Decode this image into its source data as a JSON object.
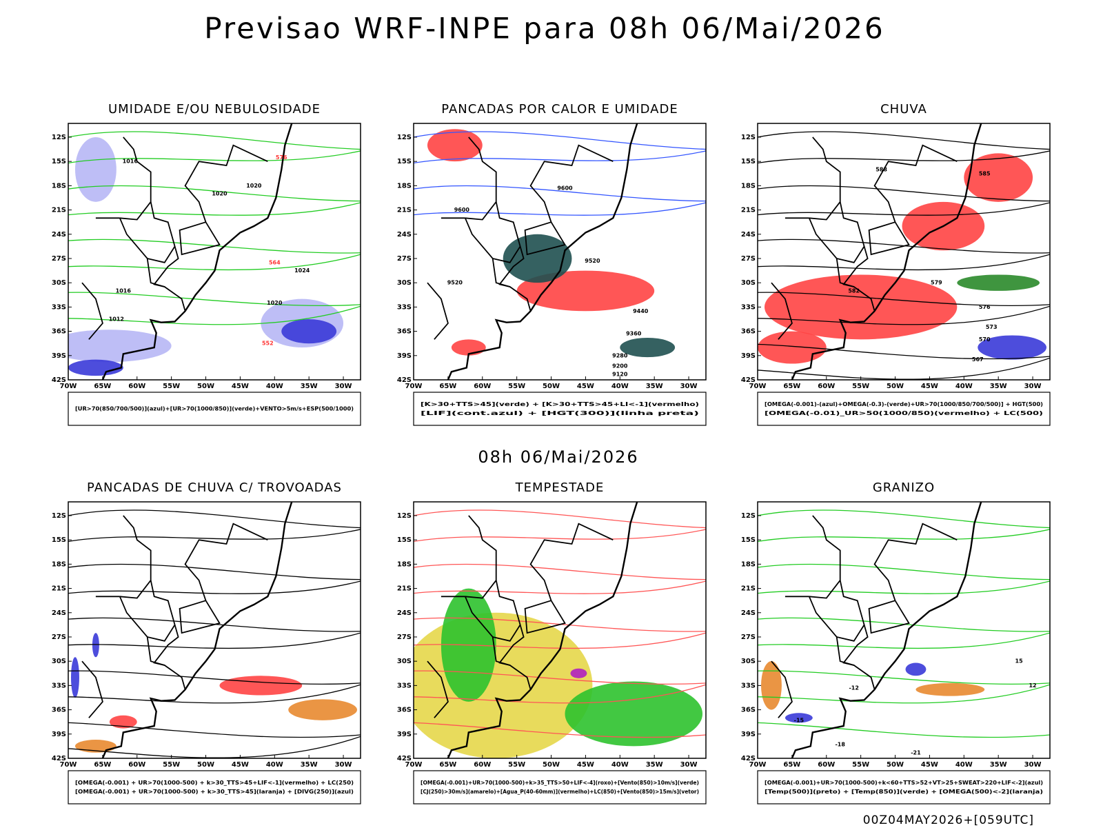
{
  "header": {
    "title": "Previsao WRF-INPE  para 08h 06/Mai/2026"
  },
  "axes": {
    "lat_labels": [
      "12S",
      "15S",
      "18S",
      "21S",
      "24S",
      "27S",
      "30S",
      "33S",
      "36S",
      "39S",
      "42S"
    ],
    "lon_labels": [
      "70W",
      "65W",
      "60W",
      "55W",
      "50W",
      "45W",
      "40W",
      "35W",
      "30W"
    ]
  },
  "panels": [
    {
      "title": "UMIDADE E/OU NEBULOSIDADE",
      "legend": [
        "[UR>70(850/700/500)](azul)+[UR>70(1000/850)](verde)+VENTO>5m/s+ESP(500/1000)"
      ],
      "contour_labels": [
        "1016",
        "1020",
        "1020",
        "1024",
        "1012",
        "1016",
        "1020",
        "576",
        "564",
        "552"
      ]
    },
    {
      "title": "PANCADAS POR CALOR E UMIDADE",
      "legend": [
        "[K>30+TTS>45](verde) + [K>30+TTS>45+LI<-1](vermelho)",
        "[LIF](cont.azul) + [HGT(300)](linha preta)"
      ],
      "contour_labels": [
        "9600",
        "9600",
        "9520",
        "9520",
        "9440",
        "9360",
        "9280",
        "9200",
        "9120"
      ]
    },
    {
      "title": "CHUVA",
      "legend": [
        "[OMEGA(-0.001)-(azul)+OMEGA(-0.3)-(verde)+UR>70(1000/850/700/500)] + HGT(500)",
        "[OMEGA(-0.01)_UR>50(1000/850)(vermelho) + LC(500)"
      ],
      "contour_labels": [
        "588",
        "585",
        "582",
        "579",
        "576",
        "573",
        "570",
        "567"
      ]
    },
    {
      "title": "PANCADAS DE CHUVA C/ TROVOADAS",
      "legend": [
        "[OMEGA(-0.001) + UR>70(1000-500) + k>30_TTS>45+LIF<-1](vermelho) + LC(250)",
        "[OMEGA(-0.001) + UR>70(1000-500) + k>30_TTS>45](laranja) + [DIVG(250)](azul)"
      ],
      "contour_labels": []
    },
    {
      "title": "TEMPESTADE",
      "legend": [
        "[OMEGA(-0.001)+UR>70(1000-500)+k>35_TTS>50+LIF<-4](roxo)+[Vento(850)>10m/s](verde)",
        "[CJ(250)>30m/s](amarelo)+[Agua_P(40-60mm)](vermelho)+LC(850)+[Vento(850)>15m/s](vetor)"
      ],
      "contour_labels": []
    },
    {
      "title": "GRANIZO",
      "legend": [
        "[OMEGA(-0.001)+UR>70(1000-500)+k<60+TTS>52+VT>25+SWEAT>220+LIF<-2](azul)",
        "[Temp(500)](preto) + [Temp(850)](verde) + [OMEGA(500)<-2](laranja)"
      ],
      "contour_labels": [
        "-12",
        "-15",
        "-18",
        "-21",
        "12",
        "15"
      ]
    }
  ],
  "subtitle": "08h 06/Mai/2026",
  "footer": "00Z04MAY2026+[059UTC]"
}
